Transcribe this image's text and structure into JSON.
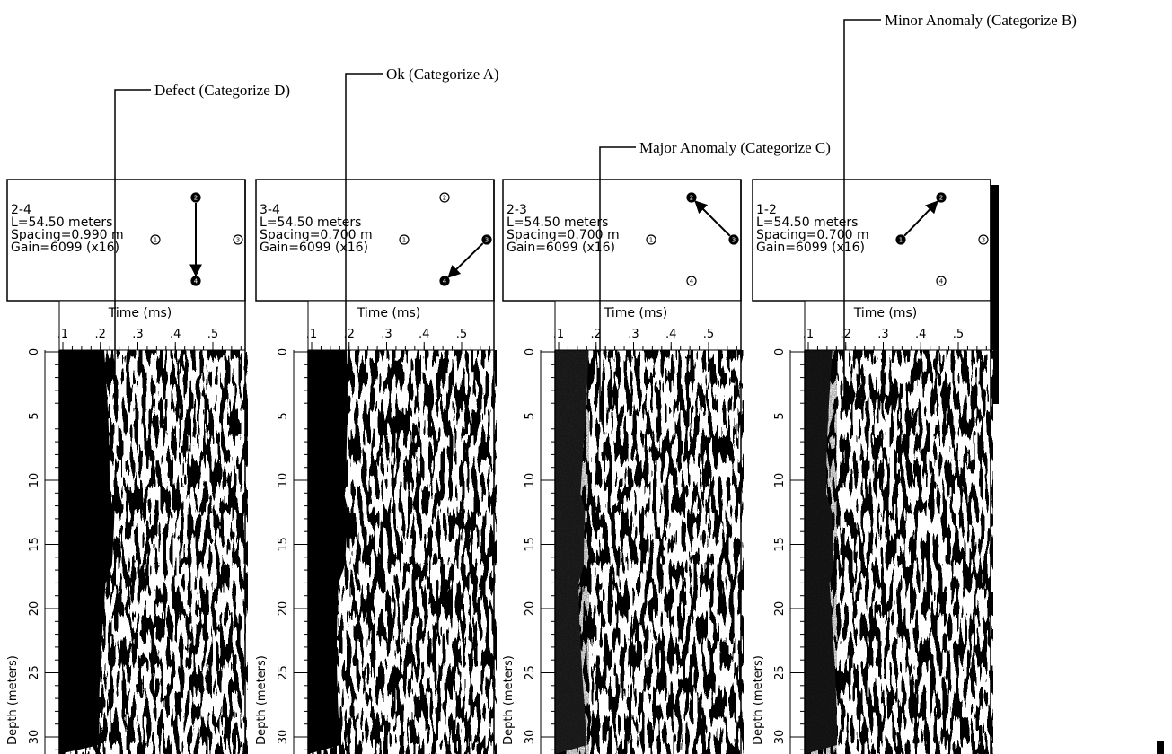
{
  "annotations": [
    {
      "label": "Defect (Categorize D)"
    },
    {
      "label": "Ok (Categorize A)"
    },
    {
      "label": "Major Anomaly (Categorize C)"
    },
    {
      "label": "Minor Anomaly (Categorize B)"
    }
  ],
  "tube_labels": [
    "1",
    "2",
    "3",
    "4"
  ],
  "panels": [
    {
      "pair": "2-4",
      "length": "L=54.50 meters",
      "spacing": "Spacing=0.990 m",
      "gain": "Gain=6099 (x16)",
      "time_label": "Time (ms)",
      "time_ticks": [
        {
          "value": 0.1,
          "label": ".1"
        },
        {
          "value": 0.2,
          "label": ".2"
        },
        {
          "value": 0.3,
          "label": ".3"
        },
        {
          "value": 0.4,
          "label": ".4"
        },
        {
          "value": 0.5,
          "label": ".5"
        }
      ],
      "depth_label": "Depth (meters)",
      "depth_ticks": [
        0,
        5,
        10,
        15,
        20,
        25,
        30
      ]
    },
    {
      "pair": "3-4",
      "length": "L=54.50 meters",
      "spacing": "Spacing=0.700 m",
      "gain": "Gain=6099 (x16)",
      "time_label": "Time (ms)",
      "time_ticks": [
        {
          "value": 0.1,
          "label": ".1"
        },
        {
          "value": 0.2,
          "label": ".2"
        },
        {
          "value": 0.3,
          "label": ".3"
        },
        {
          "value": 0.4,
          "label": ".4"
        },
        {
          "value": 0.5,
          "label": ".5"
        }
      ],
      "depth_label": "Depth (meters)",
      "depth_ticks": [
        0,
        5,
        10,
        15,
        20,
        25,
        30
      ]
    },
    {
      "pair": "2-3",
      "length": "L=54.50 meters",
      "spacing": "Spacing=0.700 m",
      "gain": "Gain=6099 (x16)",
      "time_label": "Time (ms)",
      "time_ticks": [
        {
          "value": 0.1,
          "label": ".1"
        },
        {
          "value": 0.2,
          "label": ".2"
        },
        {
          "value": 0.3,
          "label": ".3"
        },
        {
          "value": 0.4,
          "label": ".4"
        },
        {
          "value": 0.5,
          "label": ".5"
        }
      ],
      "depth_label": "Depth (meters)",
      "depth_ticks": [
        0,
        5,
        10,
        15,
        20,
        25,
        30
      ]
    },
    {
      "pair": "1-2",
      "length": "L=54.50 meters",
      "spacing": "Spacing=0.700 m",
      "gain": "Gain=6099 (x16)",
      "time_label": "Time (ms)",
      "time_ticks": [
        {
          "value": 0.1,
          "label": ".1"
        },
        {
          "value": 0.2,
          "label": ".2"
        },
        {
          "value": 0.3,
          "label": ".3"
        },
        {
          "value": 0.4,
          "label": ".4"
        },
        {
          "value": 0.5,
          "label": ".5"
        }
      ],
      "depth_label": "Depth (meters)",
      "depth_ticks": [
        0,
        5,
        10,
        15,
        20,
        25,
        30
      ]
    }
  ]
}
